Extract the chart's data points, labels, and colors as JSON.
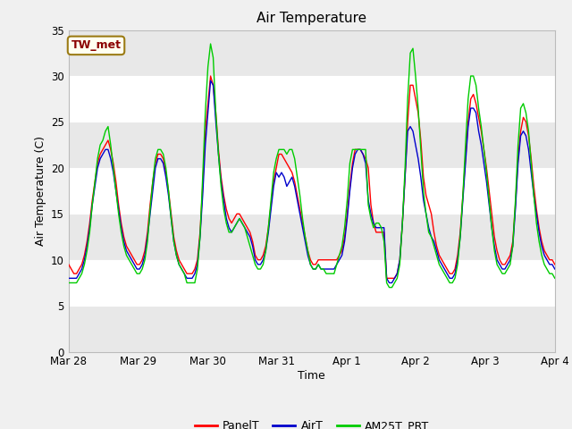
{
  "title": "Air Temperature",
  "xlabel": "Time",
  "ylabel": "Air Temperature (C)",
  "ylim": [
    0,
    35
  ],
  "yticks": [
    0,
    5,
    10,
    15,
    20,
    25,
    30,
    35
  ],
  "annotation_text": "TW_met",
  "annotation_color": "#8B0000",
  "annotation_bg": "#FFFFF0",
  "annotation_border": "#9B7B14",
  "legend_labels": [
    "PanelT",
    "AirT",
    "AM25T_PRT"
  ],
  "line_colors": [
    "#FF0000",
    "#0000CC",
    "#00CC00"
  ],
  "fig_facecolor": "#F0F0F0",
  "plot_bg": "#E8E8E8",
  "band_color_light": "#FFFFFF",
  "band_color_dark": "#E8E8E8",
  "xtick_labels": [
    "Mar 28",
    "Mar 29",
    "Mar 30",
    "Mar 31",
    "Apr 1",
    "Apr 2",
    "Apr 3",
    "Apr 4"
  ],
  "xtick_positions": [
    0,
    24,
    48,
    72,
    96,
    120,
    144,
    168
  ],
  "x_total": 168,
  "PanelT": [
    9.5,
    9.0,
    8.5,
    8.5,
    9.0,
    9.5,
    10.5,
    12.0,
    14.0,
    16.5,
    18.5,
    20.5,
    21.5,
    22.0,
    22.5,
    23.0,
    22.0,
    20.5,
    18.5,
    16.0,
    14.0,
    12.5,
    11.5,
    11.0,
    10.5,
    10.0,
    9.5,
    9.5,
    10.0,
    11.0,
    13.0,
    16.0,
    18.5,
    20.5,
    21.5,
    21.5,
    21.0,
    19.5,
    17.5,
    15.0,
    12.5,
    11.0,
    10.0,
    9.5,
    9.0,
    8.5,
    8.5,
    8.5,
    9.0,
    10.0,
    13.0,
    18.0,
    24.0,
    27.0,
    30.0,
    29.0,
    26.0,
    22.0,
    19.0,
    17.0,
    15.5,
    14.5,
    14.0,
    14.5,
    15.0,
    15.0,
    14.5,
    14.0,
    13.5,
    13.0,
    12.0,
    10.5,
    10.0,
    10.0,
    10.5,
    11.5,
    13.5,
    16.0,
    18.5,
    20.0,
    21.5,
    21.5,
    21.0,
    20.5,
    20.0,
    19.5,
    18.5,
    17.0,
    15.5,
    14.0,
    12.5,
    11.0,
    10.0,
    9.5,
    9.5,
    10.0,
    10.0,
    10.0,
    10.0,
    10.0,
    10.0,
    10.0,
    10.0,
    10.5,
    11.0,
    12.5,
    15.0,
    18.0,
    20.5,
    22.0,
    22.0,
    22.0,
    21.5,
    21.0,
    20.0,
    16.0,
    14.0,
    13.0,
    13.0,
    13.0,
    13.0,
    8.0,
    8.0,
    8.0,
    8.0,
    8.5,
    10.0,
    14.0,
    19.0,
    25.0,
    29.0,
    29.0,
    27.5,
    26.0,
    23.0,
    19.0,
    17.0,
    16.0,
    15.0,
    13.0,
    11.5,
    10.5,
    10.0,
    9.5,
    9.0,
    8.5,
    8.5,
    9.0,
    10.5,
    13.0,
    17.0,
    21.0,
    25.0,
    27.5,
    28.0,
    27.0,
    25.5,
    24.0,
    22.0,
    20.0,
    17.5,
    15.0,
    12.5,
    11.0,
    10.0,
    9.5,
    9.5,
    10.0,
    10.5,
    12.0,
    16.0,
    21.0,
    24.0,
    25.5,
    25.0,
    23.5,
    21.0,
    18.0,
    15.5,
    13.5,
    12.0,
    11.0,
    10.5,
    10.0,
    10.0,
    9.5
  ],
  "AirT": [
    8.0,
    8.0,
    8.0,
    8.0,
    8.5,
    9.0,
    10.0,
    11.5,
    13.5,
    16.0,
    18.0,
    20.0,
    21.0,
    21.5,
    22.0,
    22.0,
    21.0,
    19.5,
    17.5,
    15.5,
    13.5,
    12.0,
    11.0,
    10.5,
    10.0,
    9.5,
    9.0,
    9.0,
    9.5,
    10.5,
    12.5,
    15.0,
    17.5,
    20.0,
    21.0,
    21.0,
    20.5,
    19.0,
    17.0,
    14.5,
    12.0,
    10.5,
    9.5,
    9.0,
    8.5,
    8.0,
    8.0,
    8.0,
    8.5,
    9.5,
    12.5,
    17.0,
    22.5,
    26.0,
    29.5,
    29.0,
    25.0,
    21.5,
    18.5,
    16.5,
    14.5,
    13.5,
    13.0,
    13.5,
    14.0,
    14.5,
    14.0,
    13.5,
    13.0,
    12.5,
    11.5,
    10.0,
    9.5,
    9.5,
    10.0,
    11.0,
    13.0,
    15.5,
    18.0,
    19.5,
    19.0,
    19.5,
    19.0,
    18.0,
    18.5,
    19.0,
    18.0,
    16.5,
    15.0,
    13.5,
    12.0,
    10.5,
    9.5,
    9.0,
    9.0,
    9.5,
    9.0,
    9.0,
    9.0,
    9.0,
    9.0,
    9.0,
    9.5,
    10.0,
    10.5,
    12.0,
    14.5,
    17.5,
    20.0,
    21.5,
    22.0,
    22.0,
    21.5,
    20.5,
    16.5,
    15.0,
    14.0,
    13.5,
    13.5,
    13.5,
    13.5,
    8.0,
    7.5,
    7.5,
    8.0,
    8.5,
    10.0,
    14.0,
    19.0,
    24.0,
    24.5,
    24.0,
    22.5,
    21.0,
    19.0,
    16.5,
    15.0,
    13.5,
    12.5,
    12.0,
    11.0,
    10.0,
    9.5,
    9.0,
    8.5,
    8.0,
    8.0,
    8.5,
    10.0,
    12.5,
    16.5,
    20.5,
    24.5,
    26.5,
    26.5,
    26.0,
    24.0,
    22.5,
    20.5,
    18.5,
    16.0,
    13.5,
    11.5,
    10.0,
    9.5,
    9.0,
    9.0,
    9.5,
    10.0,
    11.5,
    15.5,
    20.5,
    23.5,
    24.0,
    23.5,
    22.0,
    19.5,
    17.0,
    15.0,
    13.0,
    11.5,
    10.5,
    10.0,
    9.5,
    9.5,
    9.0
  ],
  "AM25T_PRT": [
    7.5,
    7.5,
    7.5,
    7.5,
    8.0,
    8.5,
    9.5,
    11.0,
    13.0,
    16.0,
    18.5,
    21.0,
    22.5,
    23.0,
    24.0,
    24.5,
    22.5,
    20.0,
    17.5,
    15.0,
    13.0,
    11.5,
    10.5,
    10.0,
    9.5,
    9.0,
    8.5,
    8.5,
    9.0,
    10.0,
    12.0,
    15.5,
    18.5,
    21.0,
    22.0,
    22.0,
    21.5,
    20.0,
    17.5,
    14.5,
    12.0,
    10.5,
    9.5,
    9.0,
    8.5,
    7.5,
    7.5,
    7.5,
    7.5,
    9.0,
    12.5,
    19.0,
    26.0,
    31.0,
    33.5,
    32.0,
    26.0,
    21.5,
    18.0,
    15.5,
    14.0,
    13.0,
    13.0,
    13.5,
    14.0,
    14.5,
    14.0,
    13.5,
    12.5,
    11.5,
    10.5,
    9.5,
    9.0,
    9.0,
    9.5,
    11.0,
    13.5,
    16.5,
    19.5,
    21.0,
    22.0,
    22.0,
    22.0,
    21.5,
    22.0,
    22.0,
    21.0,
    19.0,
    17.0,
    14.5,
    12.5,
    11.0,
    9.5,
    9.0,
    9.0,
    9.5,
    9.0,
    9.0,
    8.5,
    8.5,
    8.5,
    8.5,
    9.5,
    10.5,
    11.5,
    13.5,
    16.5,
    20.5,
    22.0,
    22.0,
    22.0,
    22.0,
    22.0,
    22.0,
    16.0,
    14.5,
    13.5,
    14.0,
    14.0,
    13.5,
    12.0,
    7.5,
    7.0,
    7.0,
    7.5,
    8.0,
    9.5,
    14.0,
    20.0,
    27.5,
    32.5,
    33.0,
    30.0,
    26.5,
    22.0,
    17.5,
    15.0,
    13.0,
    12.5,
    11.5,
    10.5,
    9.5,
    9.0,
    8.5,
    8.0,
    7.5,
    7.5,
    8.0,
    9.5,
    12.5,
    17.0,
    22.5,
    27.5,
    30.0,
    30.0,
    29.0,
    26.5,
    24.5,
    22.0,
    19.5,
    16.5,
    13.5,
    11.0,
    9.5,
    9.0,
    8.5,
    8.5,
    9.0,
    9.5,
    11.5,
    16.5,
    22.5,
    26.5,
    27.0,
    26.0,
    24.0,
    20.5,
    17.0,
    14.0,
    12.0,
    10.5,
    9.5,
    9.0,
    8.5,
    8.5,
    8.0
  ]
}
